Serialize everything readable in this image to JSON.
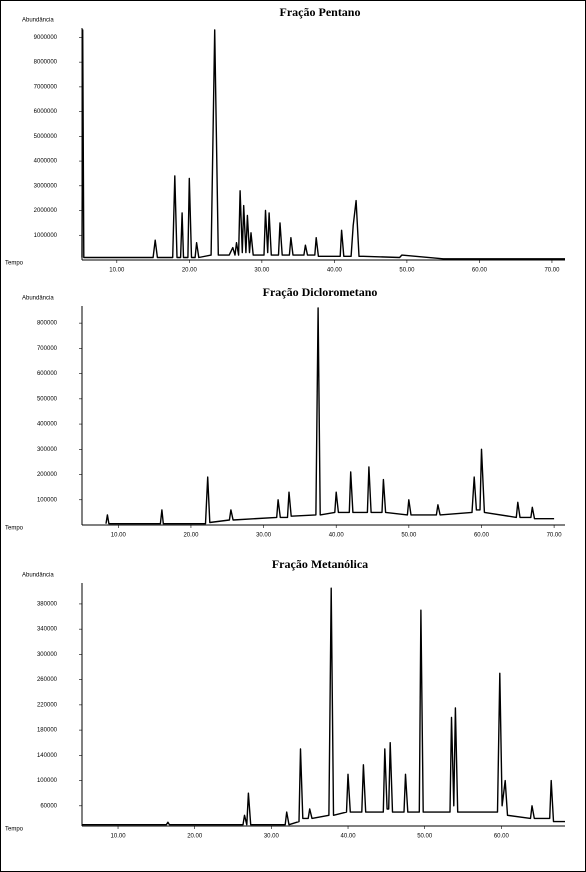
{
  "chart_data": [
    {
      "type": "line",
      "title": "Fração Pentano",
      "y_label": "Abundância",
      "x_label": "Tempo",
      "color": "#000000",
      "x": [
        5.2,
        5.3,
        5.45,
        15.0,
        15.3,
        15.6,
        17.7,
        18.0,
        18.3,
        18.8,
        19.0,
        19.2,
        19.8,
        20.0,
        20.3,
        20.8,
        21.0,
        21.3,
        23.0,
        23.5,
        24.0,
        25.5,
        26.0,
        26.3,
        26.5,
        26.8,
        27.0,
        27.3,
        27.5,
        27.8,
        28.0,
        28.3,
        28.5,
        28.8,
        30.3,
        30.5,
        30.8,
        31.0,
        31.3,
        32.3,
        32.5,
        32.8,
        33.8,
        34.0,
        34.3,
        35.8,
        36.0,
        36.3,
        37.3,
        37.5,
        37.8,
        40.8,
        41.0,
        41.3,
        42.3,
        42.6,
        43.0,
        43.4,
        44,
        49,
        49.3,
        55,
        71.8
      ],
      "values": [
        100000,
        9300000,
        100000,
        100000,
        800000,
        100000,
        100000,
        3400000,
        100000,
        100000,
        1900000,
        100000,
        100000,
        3300000,
        100000,
        100000,
        700000,
        100000,
        200000,
        9300000,
        200000,
        200000,
        500000,
        200000,
        700000,
        200000,
        2800000,
        300000,
        2200000,
        300000,
        1800000,
        300000,
        1100000,
        200000,
        200000,
        2000000,
        300000,
        1900000,
        200000,
        200000,
        1500000,
        200000,
        200000,
        900000,
        200000,
        200000,
        600000,
        200000,
        200000,
        900000,
        150000,
        150000,
        1200000,
        150000,
        150000,
        1400000,
        2400000,
        150000,
        150000,
        100000,
        200000,
        50000,
        50000
      ],
      "xlim": [
        5.2,
        71.8
      ],
      "ylim": [
        0,
        9300000
      ],
      "xticks": [
        {
          "value": 10,
          "label": "10.00"
        },
        {
          "value": 20,
          "label": "20.00"
        },
        {
          "value": 30,
          "label": "30.00"
        },
        {
          "value": 40,
          "label": "40.00"
        },
        {
          "value": 50,
          "label": "50.00"
        },
        {
          "value": 60,
          "label": "60.00"
        },
        {
          "value": 70,
          "label": "70.00"
        }
      ],
      "yticks": [
        1000000,
        2000000,
        3000000,
        4000000,
        5000000,
        6000000,
        7000000,
        8000000,
        9000000
      ]
    },
    {
      "type": "line",
      "title": "Fração Diclorometano",
      "y_label": "Abundância",
      "x_label": "Tempo",
      "color": "#000000",
      "x": [
        8.3,
        8.5,
        8.7,
        15.8,
        16.0,
        16.2,
        22.0,
        22.3,
        22.6,
        25.3,
        25.5,
        25.8,
        31.8,
        32.0,
        32.3,
        33.3,
        33.5,
        33.8,
        37.2,
        37.5,
        37.8,
        39.8,
        40.0,
        40.3,
        41.8,
        42.0,
        42.3,
        44.3,
        44.5,
        44.8,
        46.3,
        46.5,
        46.8,
        49.8,
        50.0,
        50.3,
        53.8,
        54.0,
        54.3,
        58.7,
        59.0,
        59.3,
        59.8,
        60.0,
        60.4,
        64.8,
        65.0,
        65.3,
        66.8,
        67.0,
        67.3,
        70.0
      ],
      "values": [
        5000,
        40000,
        5000,
        5000,
        60000,
        5000,
        5000,
        190000,
        10000,
        20000,
        60000,
        20000,
        30000,
        100000,
        30000,
        30000,
        130000,
        35000,
        40000,
        860000,
        40000,
        50000,
        130000,
        50000,
        50000,
        210000,
        50000,
        50000,
        230000,
        50000,
        50000,
        180000,
        50000,
        40000,
        100000,
        40000,
        40000,
        80000,
        40000,
        50000,
        190000,
        60000,
        60000,
        300000,
        50000,
        30000,
        90000,
        30000,
        30000,
        70000,
        25000,
        25000
      ],
      "xlim": [
        5.0,
        71.5
      ],
      "ylim": [
        0,
        860000
      ],
      "xticks": [
        {
          "value": 10,
          "label": "10.00"
        },
        {
          "value": 20,
          "label": "20.00"
        },
        {
          "value": 30,
          "label": "30.00"
        },
        {
          "value": 40,
          "label": "40.00"
        },
        {
          "value": 50,
          "label": "50.00"
        },
        {
          "value": 60,
          "label": "60.00"
        },
        {
          "value": 70,
          "label": "70.00"
        }
      ],
      "yticks": [
        100000,
        200000,
        300000,
        400000,
        500000,
        600000,
        700000,
        800000
      ]
    },
    {
      "type": "line",
      "title": "Fração Metanólica",
      "y_label": "Abundância",
      "x_label": "Tempo",
      "color": "#000000",
      "x": [
        5.3,
        16.3,
        16.5,
        16.7,
        26.3,
        26.5,
        26.8,
        27.0,
        27.3,
        31.8,
        32.0,
        32.3,
        33.6,
        33.8,
        34.1,
        34.8,
        35.0,
        35.3,
        37.5,
        37.8,
        38.1,
        39.8,
        40.0,
        40.3,
        41.8,
        42.0,
        42.3,
        44.6,
        44.8,
        45.1,
        45.3,
        45.5,
        45.8,
        47.3,
        47.5,
        47.8,
        49.3,
        49.5,
        49.8,
        53.3,
        53.5,
        53.8,
        54.0,
        54.3,
        59.5,
        59.8,
        60.1,
        60.5,
        60.8,
        63.8,
        64.0,
        64.3,
        66.3,
        66.5,
        66.8,
        68.3
      ],
      "values": [
        30000,
        30000,
        34000,
        30000,
        30000,
        45000,
        30000,
        80000,
        30000,
        30000,
        50000,
        30000,
        35000,
        150000,
        40000,
        40000,
        55000,
        40000,
        45000,
        405000,
        45000,
        50000,
        110000,
        50000,
        50000,
        125000,
        50000,
        50000,
        150000,
        55000,
        55000,
        160000,
        50000,
        50000,
        110000,
        50000,
        50000,
        370000,
        50000,
        50000,
        200000,
        60000,
        215000,
        50000,
        50000,
        270000,
        60000,
        100000,
        45000,
        40000,
        60000,
        40000,
        40000,
        100000,
        35000,
        35000
      ],
      "xlim": [
        5.3,
        68.3
      ],
      "ylim": [
        28000,
        410000
      ],
      "xticks": [
        {
          "value": 10,
          "label": "10.00"
        },
        {
          "value": 20,
          "label": "20.00"
        },
        {
          "value": 30,
          "label": "30.00"
        },
        {
          "value": 40,
          "label": "40.00"
        },
        {
          "value": 50,
          "label": "50.00"
        },
        {
          "value": 60,
          "label": "60.00"
        }
      ],
      "yticks": [
        60000,
        100000,
        140000,
        180000,
        220000,
        260000,
        300000,
        340000,
        380000
      ]
    }
  ]
}
